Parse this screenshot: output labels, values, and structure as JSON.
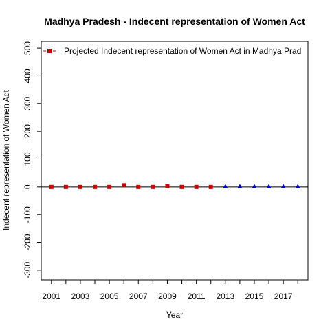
{
  "chart_data": {
    "type": "scatter",
    "title": "Madhya Pradesh  -  Indecent representation of Women Act",
    "xlabel": "Year",
    "ylabel": "Indecent representation of Women Act",
    "xlim": [
      2000.3,
      2018.7
    ],
    "ylim": [
      -335,
      525
    ],
    "x_ticks": [
      2001,
      2003,
      2005,
      2007,
      2009,
      2011,
      2013,
      2015,
      2017
    ],
    "x_minor_ticks": [
      2001,
      2002,
      2003,
      2004,
      2005,
      2006,
      2007,
      2008,
      2009,
      2010,
      2011,
      2012,
      2013,
      2014,
      2015,
      2016,
      2017,
      2018
    ],
    "y_ticks": [
      -300,
      -200,
      -100,
      0,
      100,
      200,
      300,
      400,
      500
    ],
    "zero_line": 0,
    "grid": false,
    "legend": {
      "position": "top-left",
      "entries": [
        {
          "label": "Projected  Indecent representation of Women Act  in  Madhya Prad",
          "color": "#cc0000",
          "marker": "square",
          "line": "dashed"
        }
      ]
    },
    "series": [
      {
        "role": "actual",
        "color": "#cc0000",
        "marker": "square",
        "x": [
          2001,
          2002,
          2003,
          2004,
          2005,
          2006,
          2007,
          2008,
          2009,
          2010,
          2011,
          2012
        ],
        "y": [
          0,
          0,
          0,
          0,
          0,
          6,
          0,
          0,
          2,
          0,
          0,
          0
        ]
      },
      {
        "role": "projected",
        "color": "#0000cc",
        "marker": "triangle",
        "x": [
          2013,
          2014,
          2015,
          2016,
          2017,
          2018
        ],
        "y": [
          1,
          1,
          1,
          1,
          1,
          1
        ]
      }
    ]
  }
}
